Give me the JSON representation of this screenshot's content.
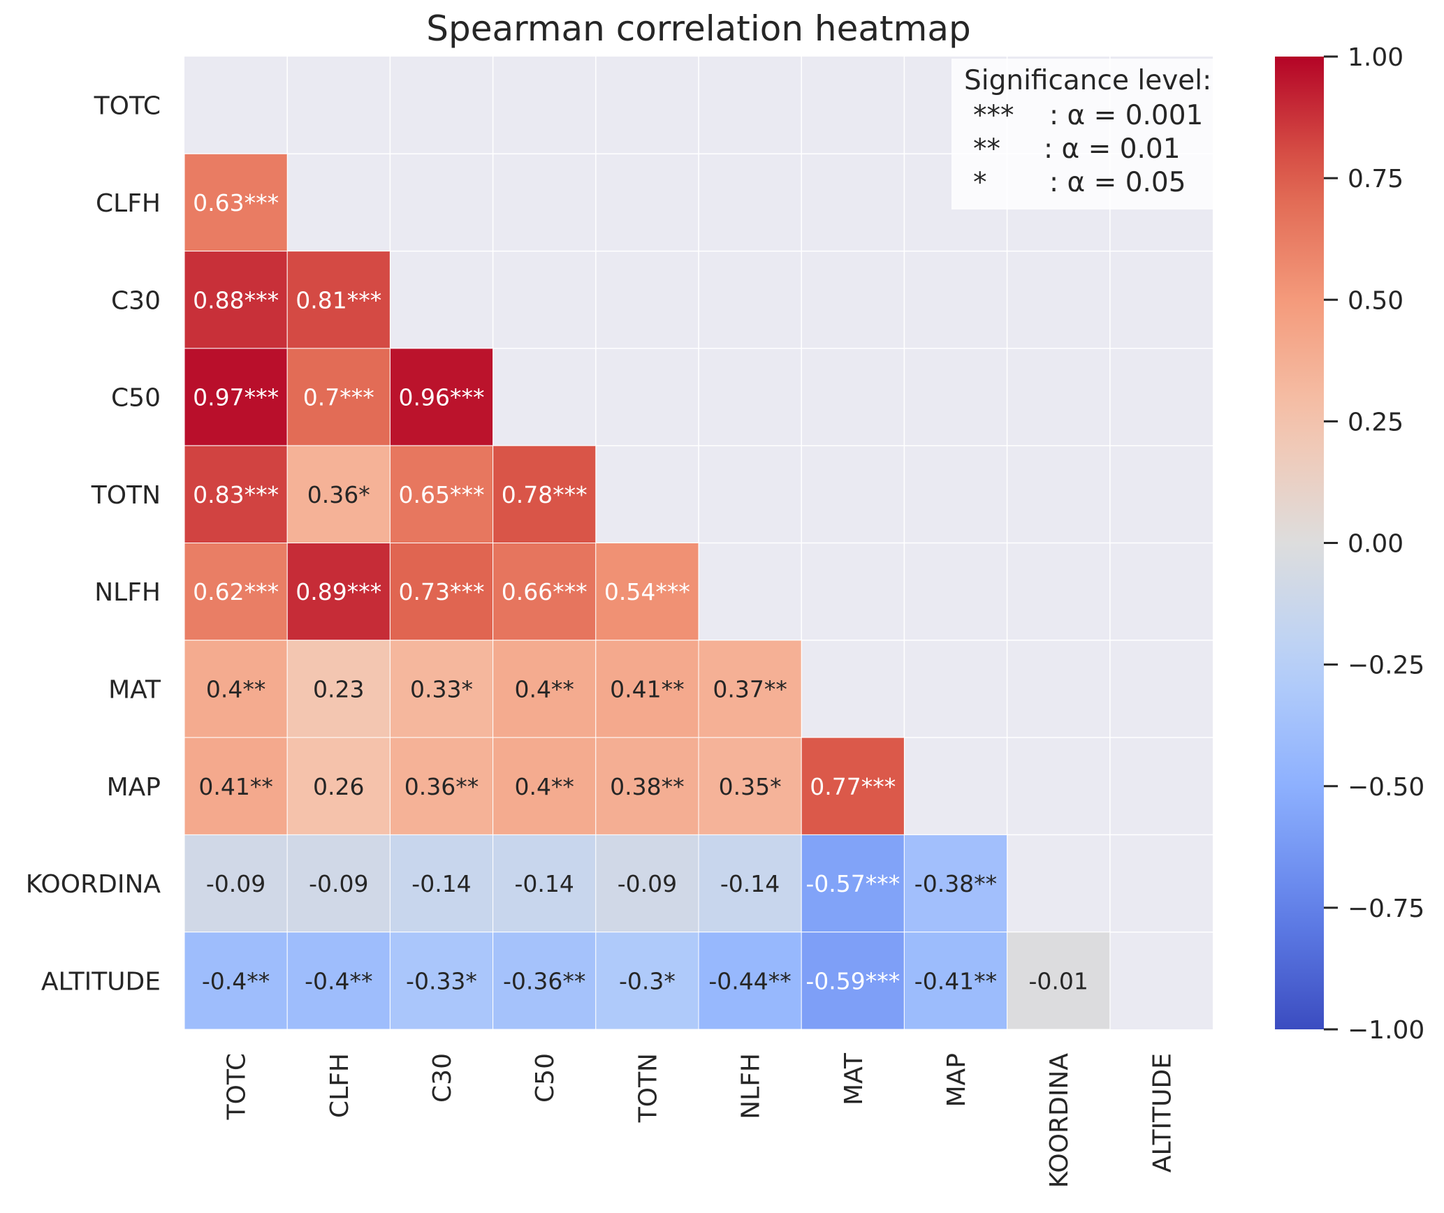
{
  "chart_data": {
    "type": "heatmap",
    "title": "Spearman correlation heatmap",
    "xlabel": "",
    "ylabel": "",
    "variables": [
      "TOTC",
      "CLFH",
      "C30",
      "C50",
      "TOTN",
      "NLFH",
      "MAT",
      "MAP",
      "KOORDINA",
      "ALTITUDE"
    ],
    "mask": "upper triangle including diagonal",
    "cells": [
      {
        "row": "CLFH",
        "col": "TOTC",
        "value": 0.63,
        "label": "0.63***"
      },
      {
        "row": "C30",
        "col": "TOTC",
        "value": 0.88,
        "label": "0.88***"
      },
      {
        "row": "C30",
        "col": "CLFH",
        "value": 0.81,
        "label": "0.81***"
      },
      {
        "row": "C50",
        "col": "TOTC",
        "value": 0.97,
        "label": "0.97***"
      },
      {
        "row": "C50",
        "col": "CLFH",
        "value": 0.7,
        "label": "0.7***"
      },
      {
        "row": "C50",
        "col": "C30",
        "value": 0.96,
        "label": "0.96***"
      },
      {
        "row": "TOTN",
        "col": "TOTC",
        "value": 0.83,
        "label": "0.83***"
      },
      {
        "row": "TOTN",
        "col": "CLFH",
        "value": 0.36,
        "label": "0.36*"
      },
      {
        "row": "TOTN",
        "col": "C30",
        "value": 0.65,
        "label": "0.65***"
      },
      {
        "row": "TOTN",
        "col": "C50",
        "value": 0.78,
        "label": "0.78***"
      },
      {
        "row": "NLFH",
        "col": "TOTC",
        "value": 0.62,
        "label": "0.62***"
      },
      {
        "row": "NLFH",
        "col": "CLFH",
        "value": 0.89,
        "label": "0.89***"
      },
      {
        "row": "NLFH",
        "col": "C30",
        "value": 0.73,
        "label": "0.73***"
      },
      {
        "row": "NLFH",
        "col": "C50",
        "value": 0.66,
        "label": "0.66***"
      },
      {
        "row": "NLFH",
        "col": "TOTN",
        "value": 0.54,
        "label": "0.54***"
      },
      {
        "row": "MAT",
        "col": "TOTC",
        "value": 0.4,
        "label": "0.4**"
      },
      {
        "row": "MAT",
        "col": "CLFH",
        "value": 0.23,
        "label": "0.23"
      },
      {
        "row": "MAT",
        "col": "C30",
        "value": 0.33,
        "label": "0.33*"
      },
      {
        "row": "MAT",
        "col": "C50",
        "value": 0.4,
        "label": "0.4**"
      },
      {
        "row": "MAT",
        "col": "TOTN",
        "value": 0.41,
        "label": "0.41**"
      },
      {
        "row": "MAT",
        "col": "NLFH",
        "value": 0.37,
        "label": "0.37**"
      },
      {
        "row": "MAP",
        "col": "TOTC",
        "value": 0.41,
        "label": "0.41**"
      },
      {
        "row": "MAP",
        "col": "CLFH",
        "value": 0.26,
        "label": "0.26"
      },
      {
        "row": "MAP",
        "col": "C30",
        "value": 0.36,
        "label": "0.36**"
      },
      {
        "row": "MAP",
        "col": "C50",
        "value": 0.4,
        "label": "0.4**"
      },
      {
        "row": "MAP",
        "col": "TOTN",
        "value": 0.38,
        "label": "0.38**"
      },
      {
        "row": "MAP",
        "col": "NLFH",
        "value": 0.35,
        "label": "0.35*"
      },
      {
        "row": "MAP",
        "col": "MAT",
        "value": 0.77,
        "label": "0.77***"
      },
      {
        "row": "KOORDINA",
        "col": "TOTC",
        "value": -0.09,
        "label": "-0.09"
      },
      {
        "row": "KOORDINA",
        "col": "CLFH",
        "value": -0.09,
        "label": "-0.09"
      },
      {
        "row": "KOORDINA",
        "col": "C30",
        "value": -0.14,
        "label": "-0.14"
      },
      {
        "row": "KOORDINA",
        "col": "C50",
        "value": -0.14,
        "label": "-0.14"
      },
      {
        "row": "KOORDINA",
        "col": "TOTN",
        "value": -0.09,
        "label": "-0.09"
      },
      {
        "row": "KOORDINA",
        "col": "NLFH",
        "value": -0.14,
        "label": "-0.14"
      },
      {
        "row": "KOORDINA",
        "col": "MAT",
        "value": -0.57,
        "label": "-0.57***"
      },
      {
        "row": "KOORDINA",
        "col": "MAP",
        "value": -0.38,
        "label": "-0.38**"
      },
      {
        "row": "ALTITUDE",
        "col": "TOTC",
        "value": -0.4,
        "label": "-0.4**"
      },
      {
        "row": "ALTITUDE",
        "col": "CLFH",
        "value": -0.4,
        "label": "-0.4**"
      },
      {
        "row": "ALTITUDE",
        "col": "C30",
        "value": -0.33,
        "label": "-0.33*"
      },
      {
        "row": "ALTITUDE",
        "col": "C50",
        "value": -0.36,
        "label": "-0.36**"
      },
      {
        "row": "ALTITUDE",
        "col": "TOTN",
        "value": -0.3,
        "label": "-0.3*"
      },
      {
        "row": "ALTITUDE",
        "col": "NLFH",
        "value": -0.44,
        "label": "-0.44**"
      },
      {
        "row": "ALTITUDE",
        "col": "MAT",
        "value": -0.59,
        "label": "-0.59***"
      },
      {
        "row": "ALTITUDE",
        "col": "MAP",
        "value": -0.41,
        "label": "-0.41**"
      },
      {
        "row": "ALTITUDE",
        "col": "KOORDINA",
        "value": -0.01,
        "label": "-0.01"
      }
    ],
    "colorbar": {
      "colormap": "coolwarm",
      "range": [
        -1.0,
        1.0
      ],
      "ticks": [
        "1.00",
        "0.75",
        "0.50",
        "0.25",
        "0.00",
        "−0.25",
        "−0.50",
        "−0.75",
        "−1.00"
      ],
      "tick_values": [
        1.0,
        0.75,
        0.5,
        0.25,
        0.0,
        -0.25,
        -0.5,
        -0.75,
        -1.0
      ]
    },
    "annotation_legend": {
      "title": "Significance level:",
      "entries": [
        {
          "marker": "***",
          "text": ": α = 0.001"
        },
        {
          "marker": "**",
          "text": ": α = 0.01"
        },
        {
          "marker": "*",
          "text": ": α = 0.05"
        }
      ],
      "placement": "top-right"
    },
    "grid": true
  },
  "colors": {
    "axes_background": "#eaeaf2",
    "grid_line": "#ffffff",
    "text_dark": "#262626",
    "text_light": "#ffffff"
  }
}
